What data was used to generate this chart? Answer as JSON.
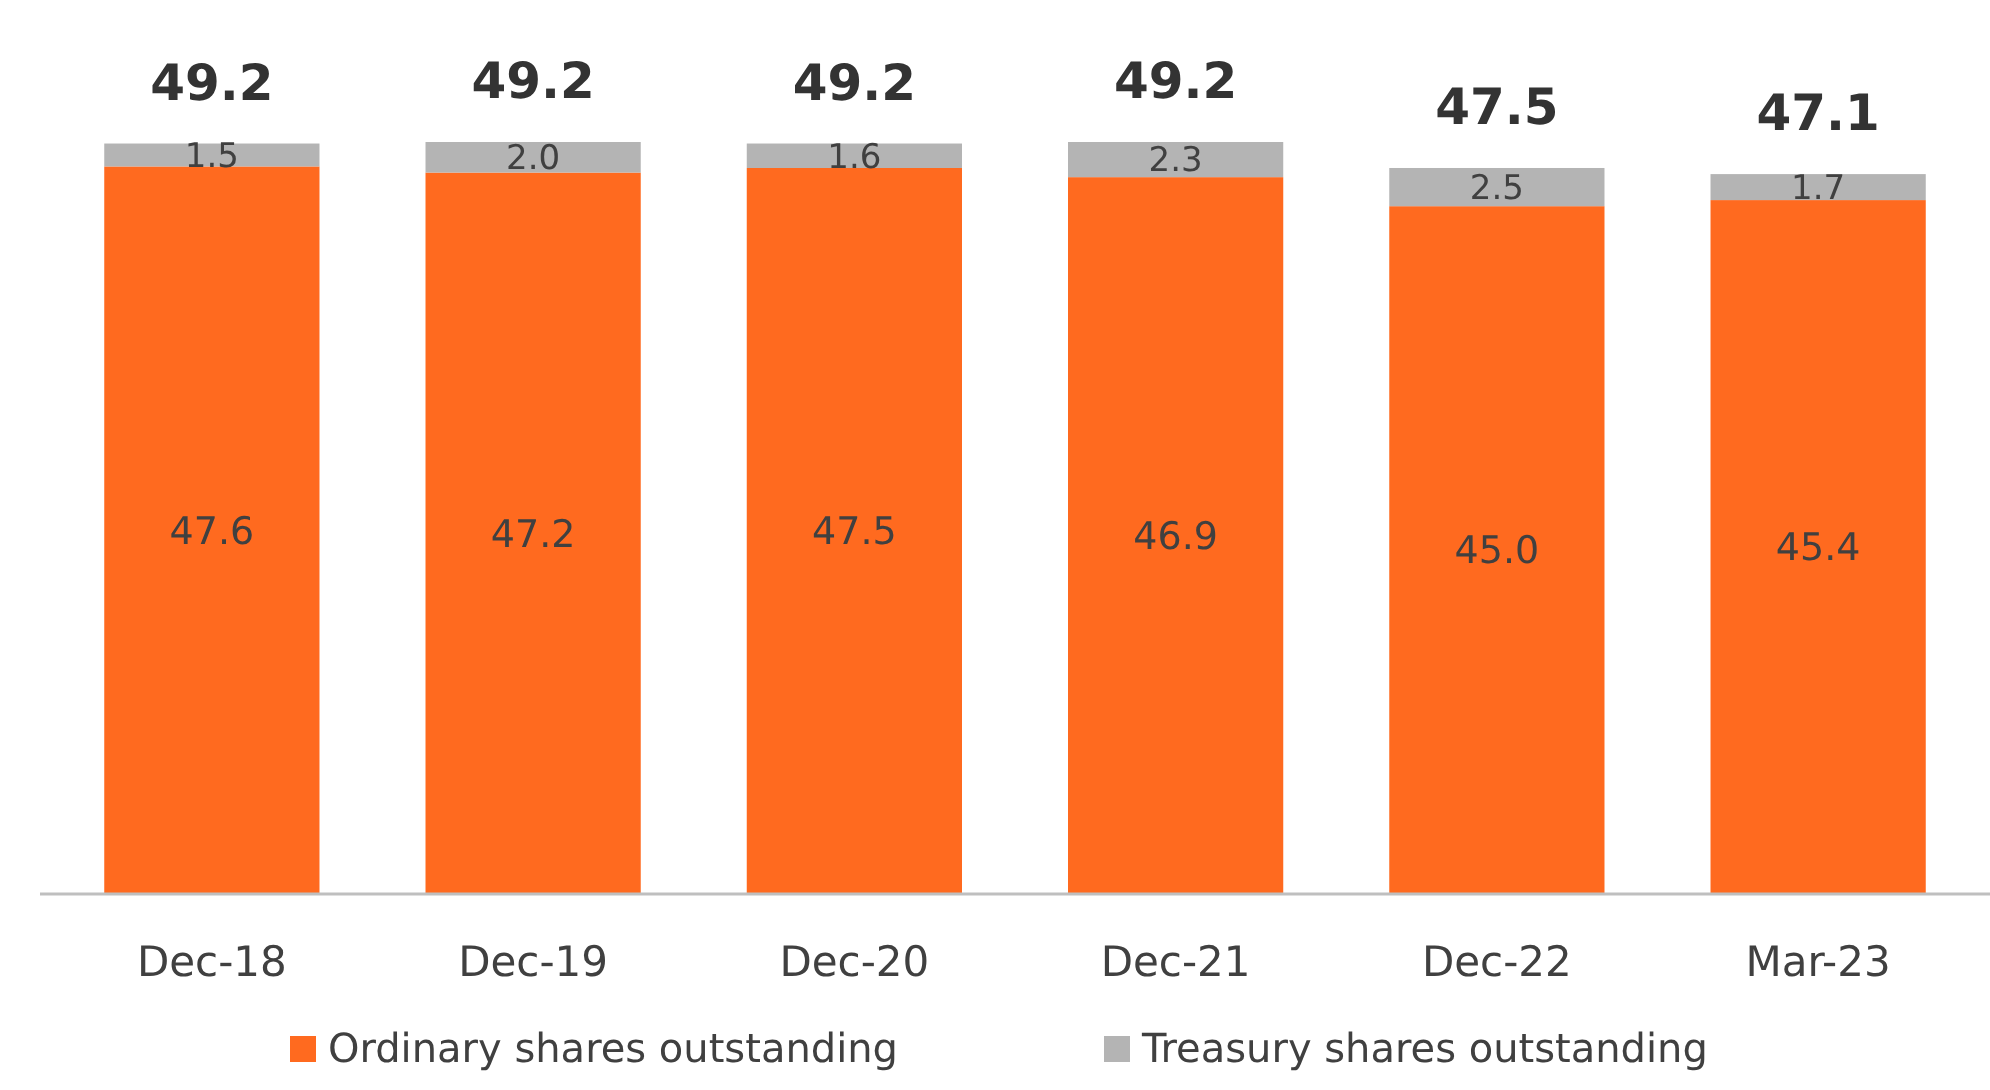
{
  "chart_data": {
    "type": "bar",
    "stacked": true,
    "legend": "bottom",
    "categories": [
      "Dec-18",
      "Dec-19",
      "Dec-20",
      "Dec-21",
      "Dec-22",
      "Mar-23"
    ],
    "series": [
      {
        "name": "Ordinary shares outstanding",
        "color": "#ff6a1f",
        "values": [
          47.6,
          47.2,
          47.5,
          46.9,
          45.0,
          45.4
        ],
        "value_labels": [
          "47.6",
          "47.2",
          "47.5",
          "46.9",
          "45.0",
          "45.4"
        ]
      },
      {
        "name": "Treasury shares outstanding",
        "color": "#b4b4b4",
        "values": [
          1.5,
          2.0,
          1.6,
          2.3,
          2.5,
          1.7
        ],
        "value_labels": [
          "1.5",
          "2.0",
          "1.6",
          "2.3",
          "2.5",
          "1.7"
        ]
      }
    ],
    "totals": [
      "49.2",
      "49.2",
      "49.2",
      "49.2",
      "47.5",
      "47.1"
    ]
  }
}
